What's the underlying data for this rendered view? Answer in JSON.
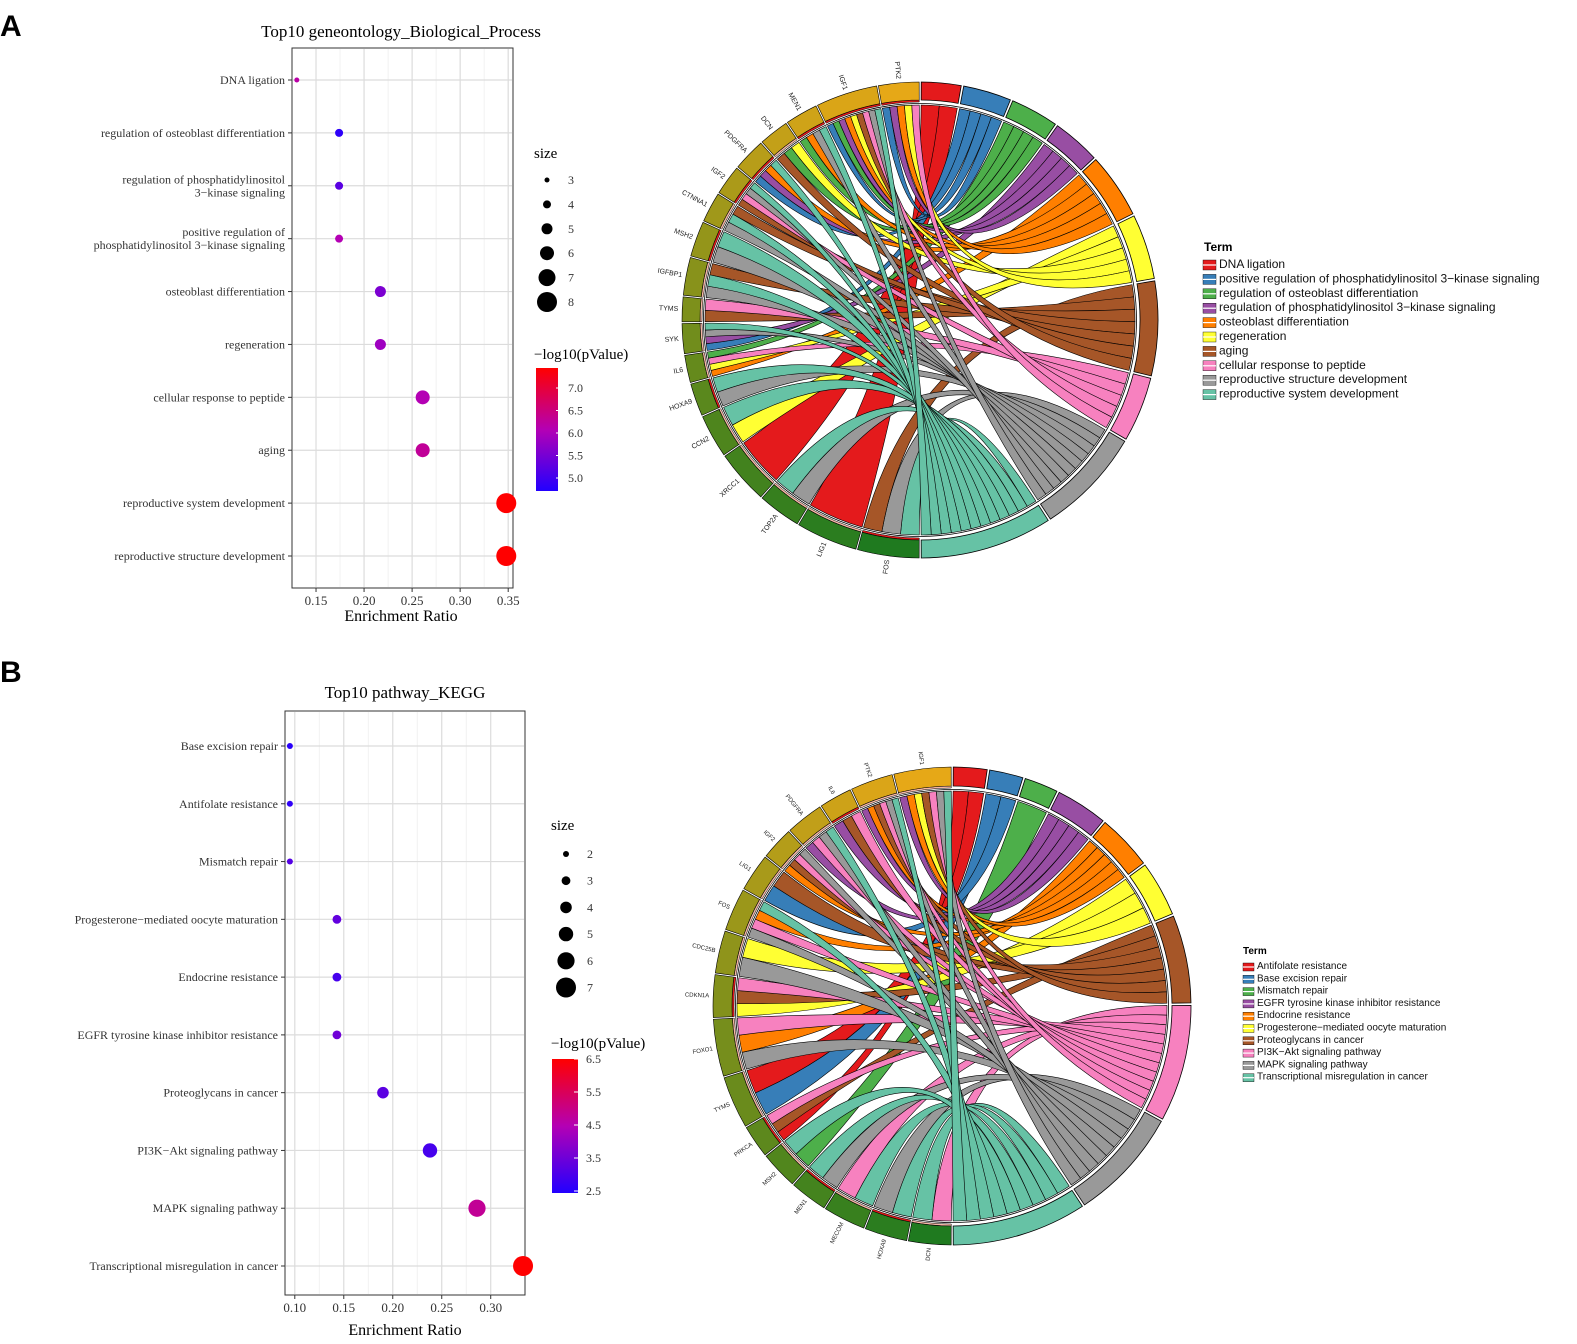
{
  "panel_a": {
    "letter": "A",
    "dot": {
      "title": "Top10 geneontology_Biological_Process",
      "xlabel": "Enrichment Ratio",
      "xticks": [
        "0.15",
        "0.20",
        "0.25",
        "0.30",
        "0.35"
      ],
      "size_legend_title": "size",
      "size_labels": [
        "3",
        "4",
        "5",
        "6",
        "7",
        "8"
      ],
      "color_legend_title": "−log10(pValue)",
      "color_labels": [
        "7.0",
        "6.5",
        "6.0",
        "5.5",
        "5.0"
      ]
    },
    "chord": {
      "legend_title": "Term",
      "terms": [
        "DNA ligation",
        "positive regulation of phosphatidylinositol 3−kinase signaling",
        "regulation of osteoblast differentiation",
        "regulation of phosphatidylinositol 3−kinase signaling",
        "osteoblast differentiation",
        "regeneration",
        "aging",
        "cellular response to peptide",
        "reproductive structure development",
        "reproductive system development"
      ],
      "colors": [
        "#e41a1c",
        "#377eb8",
        "#4daf4a",
        "#984ea3",
        "#ff7f00",
        "#ffff33",
        "#a65628",
        "#f781bf",
        "#999999",
        "#66c2a5"
      ],
      "genes": [
        "FOS",
        "LIG1",
        "TOP2A",
        "XRCC1",
        "CCN2",
        "HOXA9",
        "IL6",
        "SYK",
        "TYMS",
        "IGFBP1",
        "MSH2",
        "CTNNA1",
        "IGF2",
        "PDGFRA",
        "DCN",
        "MEN1",
        "IGF1",
        "PTK2"
      ]
    }
  },
  "panel_b": {
    "letter": "B",
    "dot": {
      "title": "Top10 pathway_KEGG",
      "xlabel": "Enrichment Ratio",
      "xticks": [
        "0.10",
        "0.15",
        "0.20",
        "0.25",
        "0.30"
      ],
      "size_legend_title": "size",
      "size_labels": [
        "2",
        "3",
        "4",
        "5",
        "6",
        "7"
      ],
      "color_legend_title": "−log10(pValue)",
      "color_labels": [
        "6.5",
        "5.5",
        "4.5",
        "3.5",
        "2.5"
      ]
    },
    "chord": {
      "legend_title": "Term",
      "terms": [
        "Antifolate resistance",
        "Base excision repair",
        "Mismatch repair",
        "EGFR tyrosine kinase inhibitor resistance",
        "Endocrine resistance",
        "Progesterone−mediated oocyte maturation",
        "Proteoglycans in cancer",
        "PI3K−Akt signaling pathway",
        "MAPK signaling pathway",
        "Transcriptional misregulation in cancer"
      ],
      "colors": [
        "#e41a1c",
        "#377eb8",
        "#4daf4a",
        "#984ea3",
        "#ff7f00",
        "#ffff33",
        "#a65628",
        "#f781bf",
        "#999999",
        "#66c2a5"
      ],
      "genes": [
        "DCN",
        "HOXA9",
        "MECOM",
        "MEN1",
        "MSH2",
        "PRKCA",
        "TYMS",
        "FOXO1",
        "CDKN1A",
        "CDC25B",
        "FOS",
        "LIG1",
        "IGF2",
        "PDGFRA",
        "IL6",
        "PTK2",
        "IGF1"
      ]
    }
  },
  "chart_data": [
    {
      "type": "scatter",
      "title": "Top10 geneontology_Biological_Process",
      "xlabel": "Enrichment Ratio",
      "ylabel": "",
      "xlim": [
        0.125,
        0.355
      ],
      "xticks": [
        0.15,
        0.2,
        0.25,
        0.3,
        0.35
      ],
      "categories": [
        "DNA ligation",
        "regulation of osteoblast differentiation",
        "regulation of phosphatidylinositol\n3−kinase signaling",
        "positive regulation of\nphosphatidylinositol 3−kinase signaling",
        "osteoblast differentiation",
        "regeneration",
        "cellular response to peptide",
        "aging",
        "reproductive system development",
        "reproductive structure development"
      ],
      "enrichment_ratio": [
        0.13,
        0.174,
        0.174,
        0.174,
        0.217,
        0.217,
        0.261,
        0.261,
        0.348,
        0.348
      ],
      "size": [
        3,
        4,
        4,
        4,
        5,
        5,
        6,
        6,
        8,
        8
      ],
      "neg_log10_pvalue": [
        6.1,
        4.8,
        5.2,
        6.0,
        5.5,
        5.8,
        6.0,
        6.2,
        7.3,
        7.3
      ],
      "size_range": [
        3,
        8
      ],
      "color_range": [
        4.7,
        7.3
      ]
    },
    {
      "type": "scatter",
      "title": "Top10 pathway_KEGG",
      "xlabel": "Enrichment Ratio",
      "ylabel": "",
      "xlim": [
        0.09,
        0.335
      ],
      "xticks": [
        0.1,
        0.15,
        0.2,
        0.25,
        0.3
      ],
      "categories": [
        "Base excision repair",
        "Antifolate resistance",
        "Mismatch repair",
        "Progesterone−mediated oocyte maturation",
        "Endocrine resistance",
        "EGFR tyrosine kinase inhibitor resistance",
        "Proteoglycans in cancer",
        "PI3K−Akt signaling pathway",
        "MAPK signaling pathway",
        "Transcriptional misregulation in cancer"
      ],
      "enrichment_ratio": [
        0.095,
        0.095,
        0.095,
        0.143,
        0.143,
        0.143,
        0.19,
        0.238,
        0.286,
        0.333
      ],
      "size": [
        2,
        2,
        2,
        3,
        3,
        3,
        4,
        5,
        6,
        7
      ],
      "neg_log10_pvalue": [
        2.6,
        2.7,
        3.2,
        3.4,
        3.0,
        3.6,
        3.3,
        3.0,
        4.9,
        6.6
      ],
      "size_range": [
        2,
        7
      ],
      "color_range": [
        2.5,
        6.6
      ]
    }
  ]
}
